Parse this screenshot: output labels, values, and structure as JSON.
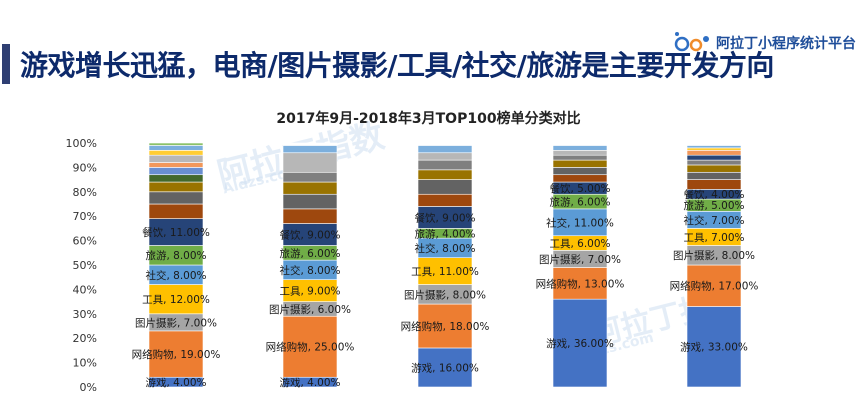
{
  "header": {
    "title": "游戏增长迅猛，电商/图片摄影/工具/社交/旅游是主要开发方向",
    "brand": "阿拉丁小程序统计平台"
  },
  "watermarks": [
    "阿拉丁指数",
    "Aldzs.com",
    "阿拉丁指",
    "zs.com"
  ],
  "colors": {
    "title": "#0d2a6b",
    "accent": "#2f3f73"
  },
  "chart_data": {
    "type": "bar",
    "stacked": true,
    "title": "2017年9月-2018年3月TOP100榜单分类对比",
    "y_ticks": [
      "0%",
      "10%",
      "20%",
      "30%",
      "40%",
      "50%",
      "60%",
      "70%",
      "80%",
      "90%",
      "100%"
    ],
    "ylim": [
      0,
      100
    ],
    "grid": false,
    "bars": [
      {
        "segments": [
          {
            "name": "游戏",
            "value": 4,
            "color": "#4472c4",
            "label": "游戏, 4.00%"
          },
          {
            "name": "网络购物",
            "value": 19,
            "color": "#ed7d31",
            "label": "网络购物, 19.00%"
          },
          {
            "name": "图片摄影",
            "value": 7,
            "color": "#a5a5a5",
            "label": "图片摄影, 7.00%"
          },
          {
            "name": "工具",
            "value": 12,
            "color": "#ffc000",
            "label": "工具, 12.00%"
          },
          {
            "name": "社交",
            "value": 8,
            "color": "#5b9bd5",
            "label": "社交, 8.00%"
          },
          {
            "name": "旅游",
            "value": 8,
            "color": "#70ad47",
            "label": "旅游, 8.00%"
          },
          {
            "name": "餐饮",
            "value": 11,
            "color": "#264478",
            "label": "餐饮, 11.00%"
          },
          {
            "name": "",
            "value": 6,
            "color": "#9e480e",
            "label": ""
          },
          {
            "name": "",
            "value": 5,
            "color": "#636363",
            "label": ""
          },
          {
            "name": "",
            "value": 4,
            "color": "#997300",
            "label": ""
          },
          {
            "name": "",
            "value": 3,
            "color": "#43682b",
            "label": ""
          },
          {
            "name": "",
            "value": 3,
            "color": "#698ed0",
            "label": ""
          },
          {
            "name": "",
            "value": 2,
            "color": "#f1975a",
            "label": ""
          },
          {
            "name": "",
            "value": 3,
            "color": "#b7b7b7",
            "label": ""
          },
          {
            "name": "",
            "value": 2,
            "color": "#ffcd33",
            "label": ""
          },
          {
            "name": "",
            "value": 2,
            "color": "#7cafdd",
            "label": ""
          },
          {
            "name": "",
            "value": 1,
            "color": "#8cc168",
            "label": ""
          }
        ]
      },
      {
        "segments": [
          {
            "name": "游戏",
            "value": 4,
            "color": "#4472c4",
            "label": "游戏, 4.00%"
          },
          {
            "name": "网络购物",
            "value": 25,
            "color": "#ed7d31",
            "label": "网络购物, 25.00%"
          },
          {
            "name": "图片摄影",
            "value": 6,
            "color": "#a5a5a5",
            "label": "图片摄影, 6.00%"
          },
          {
            "name": "工具",
            "value": 9,
            "color": "#ffc000",
            "label": "工具, 9.00%"
          },
          {
            "name": "社交",
            "value": 8,
            "color": "#5b9bd5",
            "label": "社交, 8.00%"
          },
          {
            "name": "旅游",
            "value": 6,
            "color": "#70ad47",
            "label": "旅游, 6.00%"
          },
          {
            "name": "餐饮",
            "value": 9,
            "color": "#264478",
            "label": "餐饮, 9.00%"
          },
          {
            "name": "",
            "value": 6,
            "color": "#9e480e",
            "label": ""
          },
          {
            "name": "",
            "value": 6,
            "color": "#636363",
            "label": ""
          },
          {
            "name": "",
            "value": 5,
            "color": "#997300",
            "label": ""
          },
          {
            "name": "",
            "value": 4,
            "color": "#7f7f7f",
            "label": ""
          },
          {
            "name": "",
            "value": 8,
            "color": "#b7b7b7",
            "label": ""
          },
          {
            "name": "",
            "value": 3,
            "color": "#7cafdd",
            "label": ""
          },
          {
            "name": "",
            "value": 1,
            "color": "#ffffff",
            "label": ""
          }
        ]
      },
      {
        "segments": [
          {
            "name": "游戏",
            "value": 16,
            "color": "#4472c4",
            "label": "游戏, 16.00%"
          },
          {
            "name": "网络购物",
            "value": 18,
            "color": "#ed7d31",
            "label": "网络购物, 18.00%"
          },
          {
            "name": "图片摄影",
            "value": 8,
            "color": "#a5a5a5",
            "label": "图片摄影, 8.00%"
          },
          {
            "name": "工具",
            "value": 11,
            "color": "#ffc000",
            "label": "工具, 11.00%"
          },
          {
            "name": "社交",
            "value": 8,
            "color": "#5b9bd5",
            "label": "社交, 8.00%"
          },
          {
            "name": "旅游",
            "value": 4,
            "color": "#70ad47",
            "label": "旅游, 4.00%"
          },
          {
            "name": "餐饮",
            "value": 9,
            "color": "#264478",
            "label": "餐饮, 9.00%"
          },
          {
            "name": "",
            "value": 5,
            "color": "#9e480e",
            "label": ""
          },
          {
            "name": "",
            "value": 6,
            "color": "#636363",
            "label": ""
          },
          {
            "name": "",
            "value": 4,
            "color": "#997300",
            "label": ""
          },
          {
            "name": "",
            "value": 4,
            "color": "#7f7f7f",
            "label": ""
          },
          {
            "name": "",
            "value": 3,
            "color": "#b7b7b7",
            "label": ""
          },
          {
            "name": "",
            "value": 3,
            "color": "#7cafdd",
            "label": ""
          },
          {
            "name": "",
            "value": 1,
            "color": "#ffffff",
            "label": ""
          }
        ]
      },
      {
        "segments": [
          {
            "name": "游戏",
            "value": 36,
            "color": "#4472c4",
            "label": "游戏, 36.00%"
          },
          {
            "name": "网络购物",
            "value": 13,
            "color": "#ed7d31",
            "label": "网络购物, 13.00%"
          },
          {
            "name": "图片摄影",
            "value": 7,
            "color": "#a5a5a5",
            "label": "图片摄影, 7.00%"
          },
          {
            "name": "工具",
            "value": 6,
            "color": "#ffc000",
            "label": "工具, 6.00%"
          },
          {
            "name": "社交",
            "value": 11,
            "color": "#5b9bd5",
            "label": "社交, 11.00%"
          },
          {
            "name": "旅游",
            "value": 6,
            "color": "#70ad47",
            "label": "旅游, 6.00%"
          },
          {
            "name": "餐饮",
            "value": 5,
            "color": "#264478",
            "label": "餐饮, 5.00%"
          },
          {
            "name": "",
            "value": 3,
            "color": "#9e480e",
            "label": ""
          },
          {
            "name": "",
            "value": 3,
            "color": "#636363",
            "label": ""
          },
          {
            "name": "",
            "value": 3,
            "color": "#997300",
            "label": ""
          },
          {
            "name": "",
            "value": 2,
            "color": "#7f7f7f",
            "label": ""
          },
          {
            "name": "",
            "value": 2,
            "color": "#b7b7b7",
            "label": ""
          },
          {
            "name": "",
            "value": 2,
            "color": "#7cafdd",
            "label": ""
          },
          {
            "name": "",
            "value": 1,
            "color": "#ffffff",
            "label": ""
          }
        ]
      },
      {
        "segments": [
          {
            "name": "游戏",
            "value": 33,
            "color": "#4472c4",
            "label": "游戏, 33.00%"
          },
          {
            "name": "网络购物",
            "value": 17,
            "color": "#ed7d31",
            "label": "网络购物, 17.00%"
          },
          {
            "name": "图片摄影",
            "value": 8,
            "color": "#a5a5a5",
            "label": "图片摄影, 8.00%"
          },
          {
            "name": "工具",
            "value": 7,
            "color": "#ffc000",
            "label": "工具, 7.00%"
          },
          {
            "name": "社交",
            "value": 7,
            "color": "#5b9bd5",
            "label": "社交, 7.00%"
          },
          {
            "name": "旅游",
            "value": 5,
            "color": "#70ad47",
            "label": "旅游, 5.00%"
          },
          {
            "name": "餐饮",
            "value": 4,
            "color": "#264478",
            "label": "餐饮, 4.00%"
          },
          {
            "name": "",
            "value": 4,
            "color": "#9e480e",
            "label": ""
          },
          {
            "name": "",
            "value": 3,
            "color": "#636363",
            "label": ""
          },
          {
            "name": "",
            "value": 3,
            "color": "#997300",
            "label": ""
          },
          {
            "name": "",
            "value": 2,
            "color": "#7f7f7f",
            "label": ""
          },
          {
            "name": "",
            "value": 2,
            "color": "#264478",
            "label": ""
          },
          {
            "name": "",
            "value": 2,
            "color": "#f1975a",
            "label": ""
          },
          {
            "name": "",
            "value": 1,
            "color": "#ffcd33",
            "label": ""
          },
          {
            "name": "",
            "value": 1,
            "color": "#7cafdd",
            "label": ""
          },
          {
            "name": "",
            "value": 1,
            "color": "#ffffff",
            "label": ""
          }
        ]
      }
    ]
  }
}
